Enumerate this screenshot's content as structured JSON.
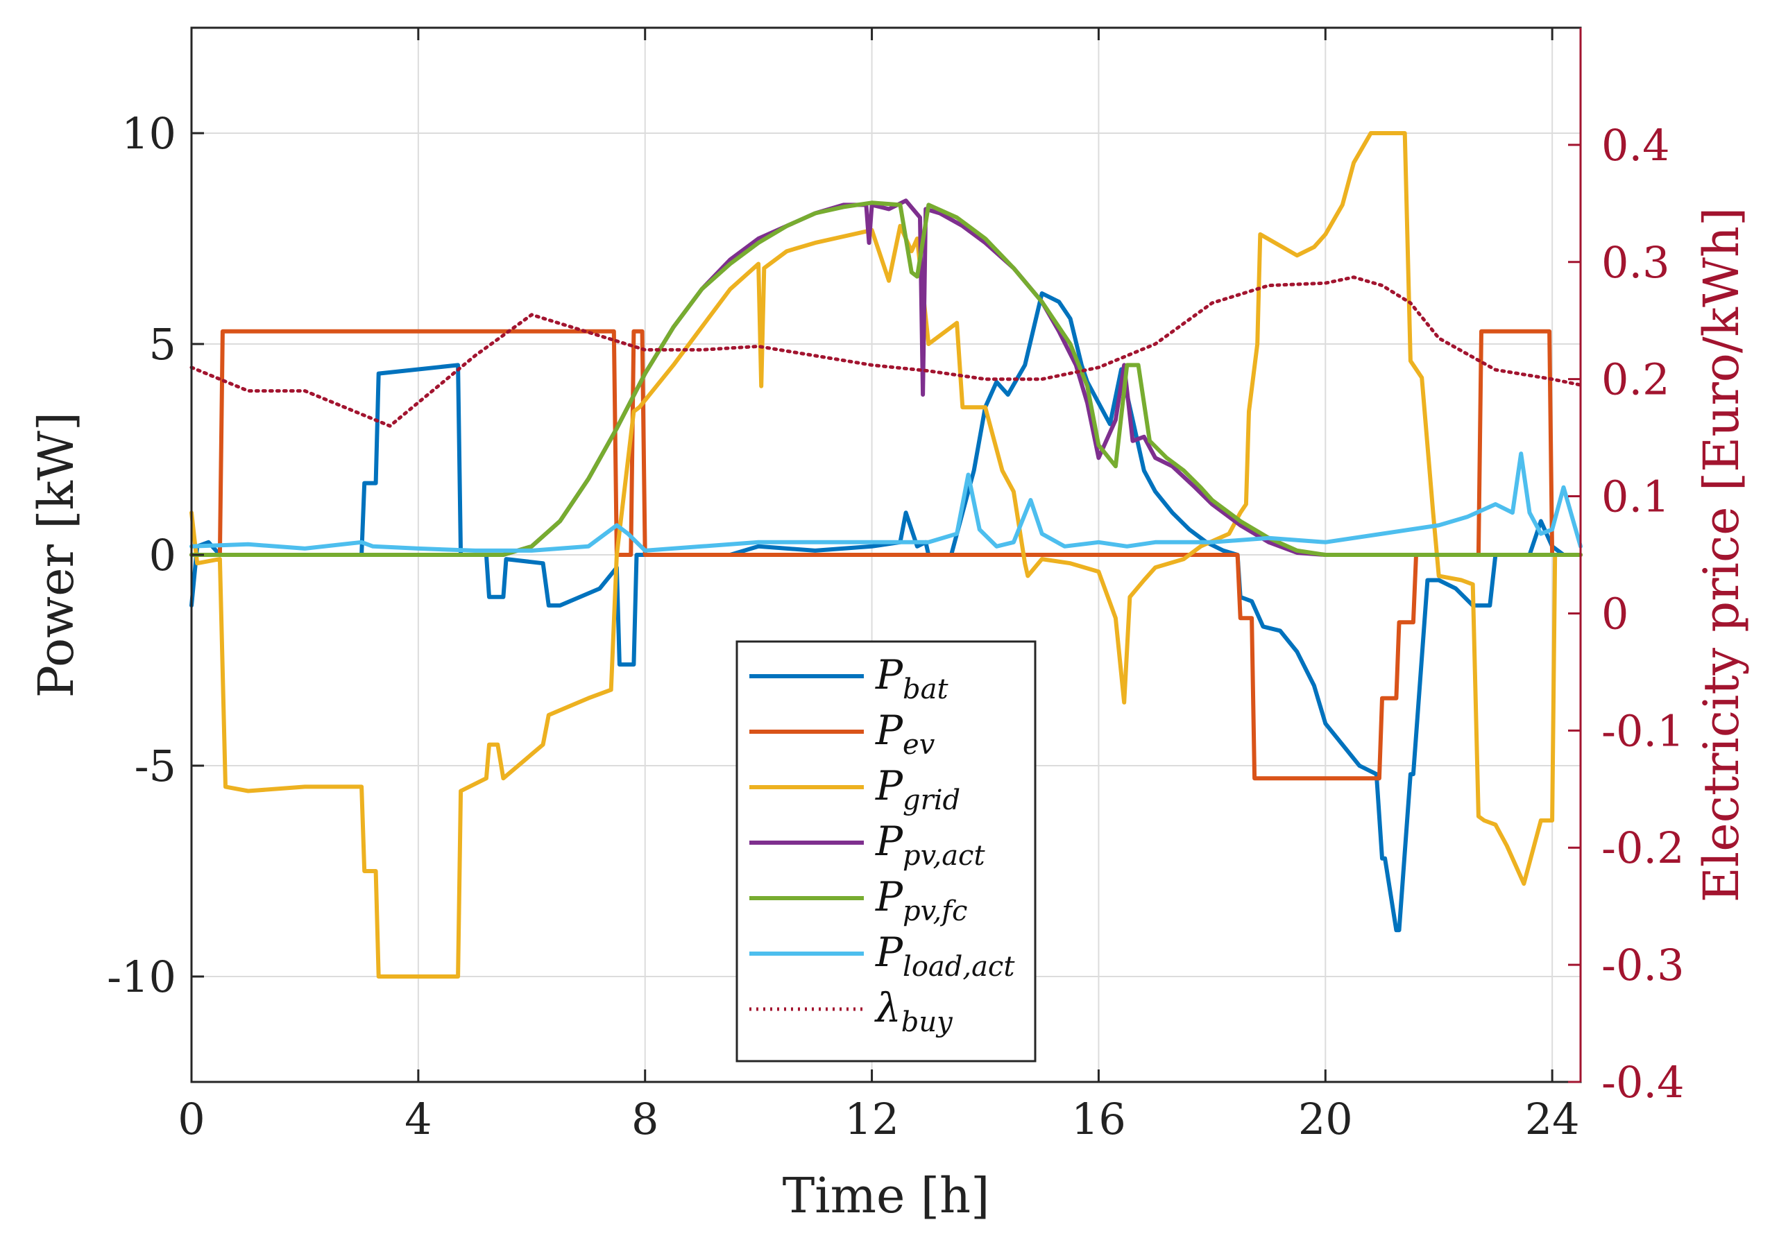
{
  "chart_data": {
    "type": "line",
    "title": "",
    "xlabel": "Time [h]",
    "ylabel_left": "Power [kW]",
    "ylabel_right": "Electricity price [Euro/kWh]",
    "xlim": [
      0,
      24.5
    ],
    "ylim_left": [
      -12.5,
      12.5
    ],
    "ylim_right": [
      -0.4,
      0.5
    ],
    "xticks": [
      0,
      4,
      8,
      12,
      16,
      20,
      24
    ],
    "xtick_labels": [
      "0",
      "4",
      "8",
      "12",
      "16",
      "20",
      "24"
    ],
    "yticks_left": [
      -10,
      -5,
      0,
      5,
      10
    ],
    "ytick_labels_left": [
      "-10",
      "-5",
      "0",
      "5",
      "10"
    ],
    "yticks_right": [
      -0.4,
      -0.3,
      -0.2,
      -0.1,
      0,
      0.1,
      0.2,
      0.3,
      0.4
    ],
    "ytick_labels_right": [
      "-0.4",
      "-0.3",
      "-0.2",
      "-0.1",
      "0",
      "0.1",
      "0.2",
      "0.3",
      "0.4"
    ],
    "grid": true,
    "legend_position": "bottom-center",
    "series": [
      {
        "name": "P_bat",
        "label_main": "P",
        "label_sub": "bat",
        "color": "#0072bd",
        "axis": "left",
        "style": "solid",
        "x": [
          0,
          0.1,
          0.3,
          0.5,
          3.0,
          3.05,
          3.25,
          3.3,
          4.7,
          4.75,
          5.2,
          5.25,
          5.5,
          5.55,
          6.2,
          6.3,
          6.5,
          7.2,
          7.5,
          7.55,
          7.8,
          7.85,
          7.9,
          7.95,
          9.5,
          10.0,
          11.0,
          12.0,
          12.5,
          12.6,
          12.8,
          12.95,
          13.0,
          13.4,
          13.6,
          13.8,
          14.0,
          14.2,
          14.4,
          14.7,
          15.0,
          15.3,
          15.5,
          15.7,
          15.8,
          16.0,
          16.2,
          16.4,
          16.6,
          16.8,
          17.0,
          17.3,
          17.6,
          17.9,
          18.2,
          18.45,
          18.5,
          18.7,
          18.9,
          19.2,
          19.5,
          19.8,
          20.0,
          20.3,
          20.6,
          20.9,
          21.0,
          21.05,
          21.25,
          21.3,
          21.5,
          21.55,
          21.8,
          22.0,
          22.3,
          22.6,
          22.9,
          23.0,
          23.2,
          23.4,
          23.6,
          23.8,
          24.0,
          24.2,
          24.5
        ],
        "values": [
          -1.2,
          0.2,
          0.3,
          0,
          0,
          1.7,
          1.7,
          4.3,
          4.5,
          0,
          0,
          -1.0,
          -1.0,
          -0.1,
          -0.2,
          -1.2,
          -1.2,
          -0.8,
          -0.3,
          -2.6,
          -2.6,
          0,
          0,
          0,
          0,
          0.2,
          0.1,
          0.2,
          0.3,
          1.0,
          0.2,
          0.3,
          0,
          0,
          1.0,
          2.0,
          3.5,
          4.1,
          3.8,
          4.5,
          6.2,
          6.0,
          5.6,
          4.5,
          4.1,
          3.6,
          3.1,
          4.4,
          3.2,
          2.0,
          1.5,
          1.0,
          0.6,
          0.3,
          0.1,
          0,
          -1.0,
          -1.1,
          -1.7,
          -1.8,
          -2.3,
          -3.1,
          -4.0,
          -4.5,
          -5.0,
          -5.2,
          -7.2,
          -7.2,
          -8.9,
          -8.9,
          -5.2,
          -5.2,
          -0.6,
          -0.6,
          -0.8,
          -1.2,
          -1.2,
          0,
          0,
          0,
          0,
          0.8,
          0.2,
          0,
          0
        ]
      },
      {
        "name": "P_ev",
        "label_main": "P",
        "label_sub": "ev",
        "color": "#d95319",
        "axis": "left",
        "style": "solid",
        "x": [
          0,
          0.5,
          0.55,
          7.45,
          7.5,
          7.75,
          7.8,
          7.95,
          8.0,
          18.45,
          18.5,
          18.7,
          18.75,
          20.95,
          21.0,
          21.25,
          21.3,
          21.55,
          21.6,
          22.7,
          22.75,
          23.95,
          24.0,
          24.5
        ],
        "values": [
          0,
          0,
          5.3,
          5.3,
          0,
          0,
          5.3,
          5.3,
          0,
          0,
          -1.5,
          -1.5,
          -5.3,
          -5.3,
          -3.4,
          -3.4,
          -1.6,
          -1.6,
          0,
          0,
          5.3,
          5.3,
          0,
          0
        ]
      },
      {
        "name": "P_grid",
        "label_main": "P",
        "label_sub": "grid",
        "color": "#edb120",
        "axis": "left",
        "style": "solid",
        "x": [
          0,
          0.1,
          0.5,
          0.6,
          1.0,
          2.0,
          3.0,
          3.05,
          3.25,
          3.3,
          4.7,
          4.75,
          5.2,
          5.25,
          5.4,
          5.5,
          6.2,
          6.3,
          7.0,
          7.4,
          7.5,
          7.8,
          7.9,
          8.5,
          9.0,
          9.5,
          10.0,
          10.05,
          10.1,
          10.5,
          11.0,
          12.0,
          12.3,
          12.5,
          12.7,
          12.8,
          13.0,
          13.5,
          13.6,
          14.0,
          14.3,
          14.5,
          14.7,
          14.75,
          15.0,
          15.5,
          16.0,
          16.3,
          16.45,
          16.55,
          16.8,
          17.0,
          17.5,
          17.8,
          18.3,
          18.5,
          18.6,
          18.65,
          18.8,
          18.85,
          19.5,
          19.8,
          20.0,
          20.3,
          20.5,
          20.8,
          21.2,
          21.4,
          21.5,
          21.7,
          21.9,
          22.0,
          22.4,
          22.6,
          22.7,
          22.8,
          23.0,
          23.2,
          23.5,
          23.8,
          24.0,
          24.05,
          24.5
        ],
        "values": [
          1.0,
          -0.2,
          -0.1,
          -5.5,
          -5.6,
          -5.5,
          -5.5,
          -7.5,
          -7.5,
          -10.0,
          -10.0,
          -5.6,
          -5.3,
          -4.5,
          -4.5,
          -5.3,
          -4.5,
          -3.8,
          -3.4,
          -3.2,
          0.0,
          3.4,
          3.5,
          4.5,
          5.4,
          6.3,
          6.9,
          4.0,
          6.8,
          7.2,
          7.4,
          7.7,
          6.5,
          7.8,
          7.2,
          7.5,
          5.0,
          5.5,
          3.5,
          3.5,
          2.0,
          1.5,
          -0.2,
          -0.5,
          -0.1,
          -0.2,
          -0.4,
          -1.5,
          -3.5,
          -1.0,
          -0.6,
          -0.3,
          -0.1,
          0.2,
          0.5,
          1.0,
          1.2,
          3.4,
          5.0,
          7.6,
          7.1,
          7.3,
          7.6,
          8.3,
          9.3,
          10.0,
          10.0,
          10.0,
          4.6,
          4.2,
          1.0,
          -0.5,
          -0.6,
          -0.7,
          -6.2,
          -6.3,
          -6.4,
          -6.9,
          -7.8,
          -6.3,
          -6.3,
          0,
          0
        ]
      },
      {
        "name": "P_pv,act",
        "label_main": "P",
        "label_sub": "pv,act",
        "color": "#7e2f8e",
        "axis": "left",
        "style": "solid",
        "x": [
          0,
          5.5,
          6.0,
          6.5,
          7.0,
          7.5,
          8.0,
          8.5,
          9.0,
          9.5,
          10.0,
          10.5,
          11.0,
          11.5,
          11.9,
          11.95,
          12.0,
          12.3,
          12.6,
          12.85,
          12.9,
          12.95,
          13.2,
          13.6,
          14.0,
          14.5,
          15.0,
          15.3,
          15.6,
          15.8,
          16.0,
          16.3,
          16.45,
          16.6,
          16.8,
          17.0,
          17.3,
          17.7,
          18.0,
          18.5,
          19.0,
          19.5,
          20.0,
          24.5
        ],
        "values": [
          0,
          0,
          0.2,
          0.8,
          1.8,
          3.0,
          4.3,
          5.4,
          6.3,
          7.0,
          7.5,
          7.8,
          8.1,
          8.3,
          8.3,
          7.4,
          8.3,
          8.2,
          8.4,
          8.0,
          3.8,
          8.2,
          8.1,
          7.8,
          7.4,
          6.8,
          6.0,
          5.3,
          4.5,
          3.6,
          2.3,
          3.2,
          4.5,
          2.7,
          2.8,
          2.3,
          2.1,
          1.6,
          1.2,
          0.7,
          0.3,
          0.05,
          0,
          0
        ]
      },
      {
        "name": "P_pv,fc",
        "label_main": "P",
        "label_sub": "pv,fc",
        "color": "#77ac30",
        "axis": "left",
        "style": "solid",
        "x": [
          0,
          5.5,
          6.0,
          6.5,
          7.0,
          7.5,
          8.0,
          8.5,
          9.0,
          9.5,
          10.0,
          10.5,
          11.0,
          11.5,
          12.0,
          12.5,
          12.7,
          12.8,
          13.0,
          13.5,
          14.0,
          14.5,
          15.0,
          15.5,
          15.8,
          16.0,
          16.3,
          16.5,
          16.7,
          16.9,
          17.2,
          17.5,
          17.8,
          18.0,
          18.5,
          19.0,
          19.5,
          20.0,
          24.5
        ],
        "values": [
          0,
          0,
          0.2,
          0.8,
          1.8,
          3.0,
          4.3,
          5.4,
          6.3,
          6.9,
          7.4,
          7.8,
          8.1,
          8.25,
          8.35,
          8.3,
          6.7,
          6.6,
          8.3,
          8.0,
          7.5,
          6.8,
          6.0,
          5.0,
          4.0,
          2.6,
          2.1,
          4.5,
          4.5,
          2.7,
          2.3,
          2.0,
          1.6,
          1.3,
          0.8,
          0.4,
          0.1,
          0,
          0
        ]
      },
      {
        "name": "P_load,act",
        "label_main": "P",
        "label_sub": "load,act",
        "color": "#4dbeee",
        "axis": "left",
        "style": "solid",
        "x": [
          0,
          1.0,
          2.0,
          3.0,
          3.2,
          4.0,
          5.0,
          6.0,
          7.0,
          7.5,
          7.7,
          8.0,
          9.0,
          10.0,
          11.0,
          12.0,
          13.0,
          13.5,
          13.7,
          13.9,
          14.2,
          14.5,
          14.8,
          15.0,
          15.4,
          16.0,
          16.5,
          17.0,
          18.0,
          19.0,
          20.0,
          21.0,
          21.5,
          22.0,
          22.5,
          23.0,
          23.3,
          23.45,
          23.6,
          23.8,
          24.0,
          24.2,
          24.5
        ],
        "values": [
          0.2,
          0.25,
          0.15,
          0.3,
          0.2,
          0.15,
          0.1,
          0.1,
          0.2,
          0.7,
          0.5,
          0.1,
          0.2,
          0.3,
          0.3,
          0.3,
          0.3,
          0.5,
          1.9,
          0.6,
          0.2,
          0.3,
          1.3,
          0.5,
          0.2,
          0.3,
          0.2,
          0.3,
          0.3,
          0.4,
          0.3,
          0.5,
          0.6,
          0.7,
          0.9,
          1.2,
          1.0,
          2.4,
          1.0,
          0.5,
          0.6,
          1.6,
          0.2
        ]
      },
      {
        "name": "lambda_buy",
        "label_main": "λ",
        "label_sub": "buy",
        "color": "#a2142f",
        "axis": "right",
        "style": "dotted",
        "x": [
          0,
          1.0,
          2.0,
          3.0,
          3.5,
          4.0,
          5.0,
          6.0,
          7.0,
          8.0,
          9.0,
          10.0,
          11.0,
          12.0,
          13.0,
          14.0,
          15.0,
          16.0,
          17.0,
          18.0,
          19.0,
          20.0,
          20.5,
          21.0,
          21.5,
          22.0,
          23.0,
          24.0,
          24.5
        ],
        "values": [
          0.21,
          0.19,
          0.19,
          0.17,
          0.16,
          0.18,
          0.22,
          0.255,
          0.24,
          0.225,
          0.225,
          0.228,
          0.22,
          0.212,
          0.207,
          0.2,
          0.2,
          0.21,
          0.23,
          0.265,
          0.28,
          0.282,
          0.287,
          0.28,
          0.265,
          0.235,
          0.208,
          0.2,
          0.195
        ]
      }
    ]
  }
}
